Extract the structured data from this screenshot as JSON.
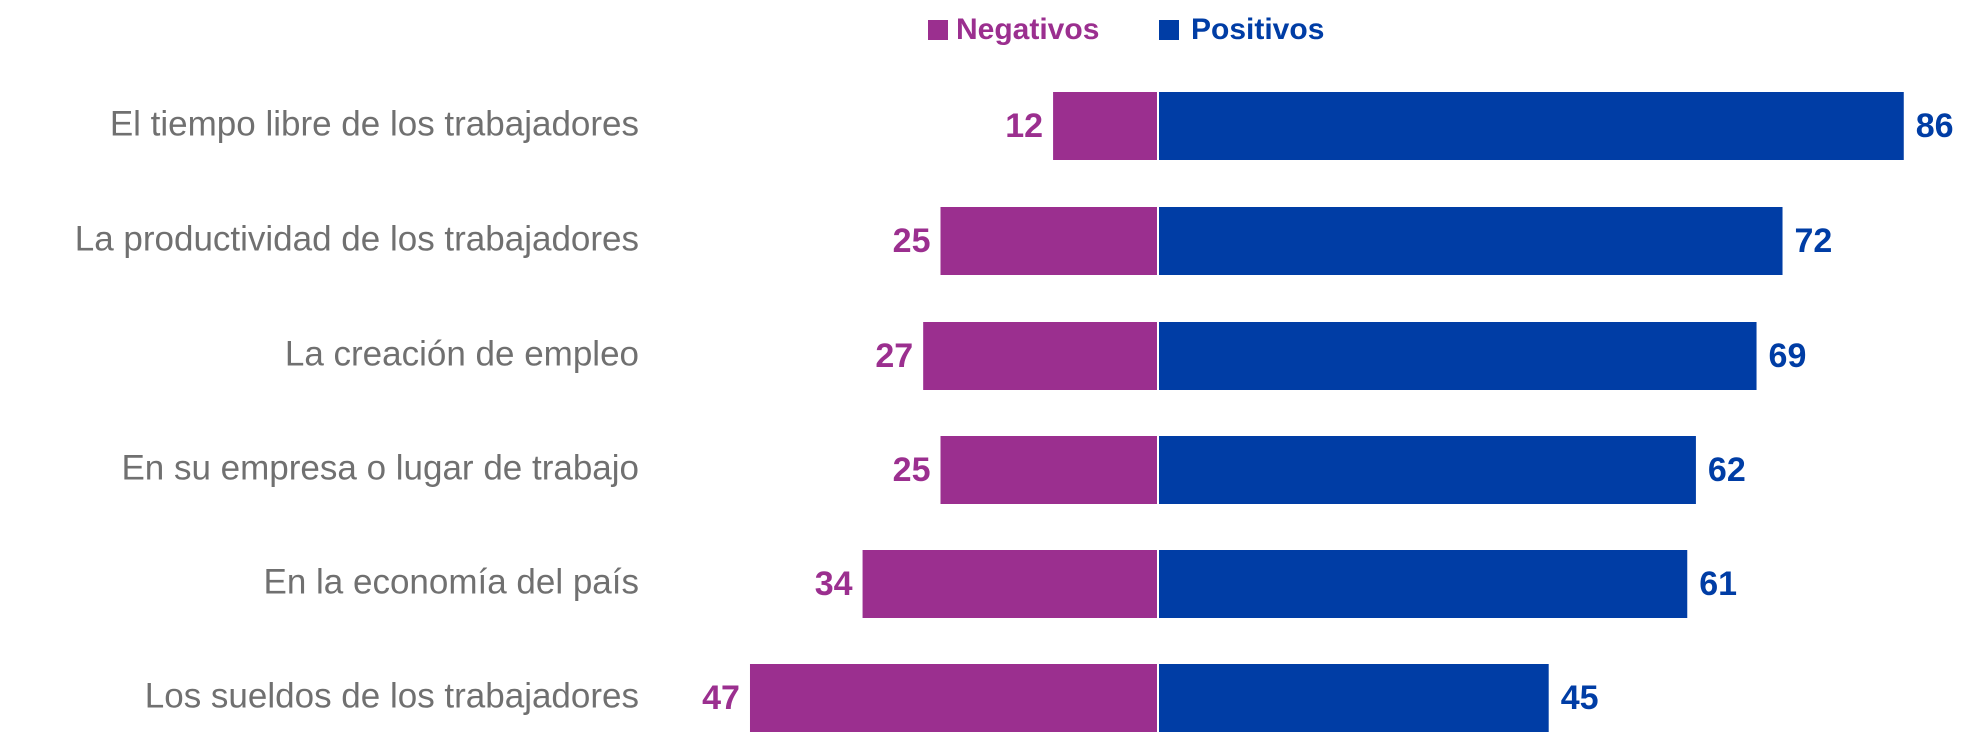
{
  "chart_data": {
    "type": "bar",
    "orientation": "horizontal",
    "diverging": true,
    "categories": [
      "El tiempo libre de los trabajadores",
      "La productividad de los trabajadores",
      "La creación de empleo",
      "En su empresa o lugar de trabajo",
      "En la economía del país",
      "Los sueldos de los trabajadores"
    ],
    "series": [
      {
        "name": "Negativos",
        "color": "#9b2f8f",
        "values": [
          12,
          25,
          27,
          25,
          34,
          47
        ]
      },
      {
        "name": "Positivos",
        "color": "#003da5",
        "values": [
          86,
          72,
          69,
          62,
          61,
          45
        ]
      }
    ],
    "legend": "top"
  }
}
